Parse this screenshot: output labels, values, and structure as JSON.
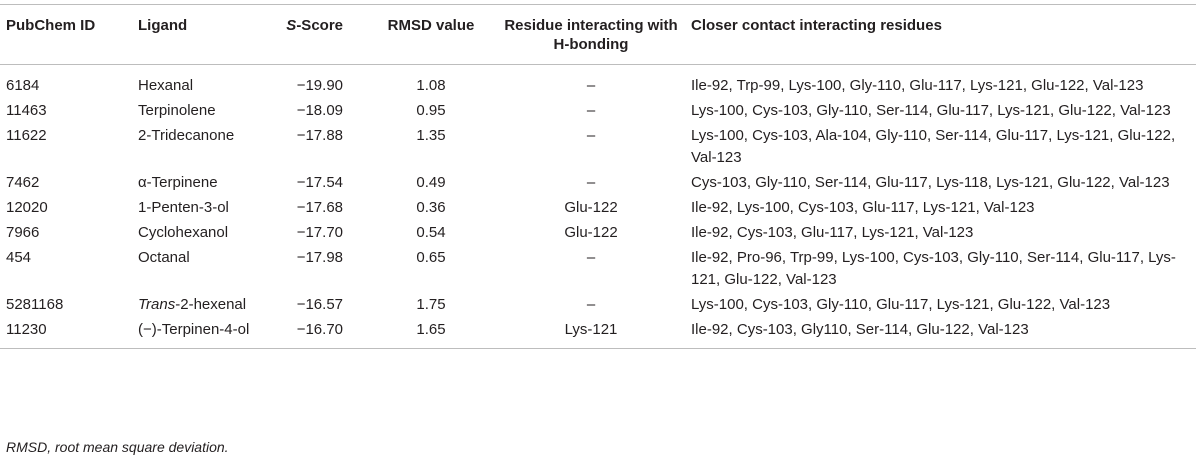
{
  "table": {
    "headers": {
      "pubchem_id": "PubChem ID",
      "ligand": "Ligand",
      "s_score_italic": "S",
      "s_score_rest": "-Score",
      "rmsd": "RMSD value",
      "hbond": "Residue interacting with H-bonding",
      "contacts": "Closer contact interacting residues"
    },
    "rows": [
      {
        "id": "6184",
        "ligand": "Hexanal",
        "ligand_italic": "",
        "score": "−19.90",
        "rmsd": "1.08",
        "hbond": "–",
        "contacts": "Ile-92, Trp-99, Lys-100, Gly-110, Glu-117, Lys-121, Glu-122, Val-123"
      },
      {
        "id": "11463",
        "ligand": "Terpinolene",
        "ligand_italic": "",
        "score": "−18.09",
        "rmsd": "0.95",
        "hbond": "–",
        "contacts": "Lys-100, Cys-103, Gly-110, Ser-114, Glu-117, Lys-121, Glu-122, Val-123"
      },
      {
        "id": "11622",
        "ligand": "2-Tridecanone",
        "ligand_italic": "",
        "score": "−17.88",
        "rmsd": "1.35",
        "hbond": "–",
        "contacts": "Lys-100, Cys-103, Ala-104, Gly-110, Ser-114, Glu-117, Lys-121, Glu-122, Val-123"
      },
      {
        "id": "7462",
        "ligand": "α-Terpinene",
        "ligand_italic": "",
        "score": "−17.54",
        "rmsd": "0.49",
        "hbond": "–",
        "contacts": "Cys-103, Gly-110, Ser-114, Glu-117, Lys-118, Lys-121, Glu-122, Val-123"
      },
      {
        "id": "12020",
        "ligand": "1-Penten-3-ol",
        "ligand_italic": "",
        "score": "−17.68",
        "rmsd": "0.36",
        "hbond": "Glu-122",
        "contacts": "Ile-92, Lys-100, Cys-103, Glu-117, Lys-121, Val-123"
      },
      {
        "id": "7966",
        "ligand": "Cyclohexanol",
        "ligand_italic": "",
        "score": "−17.70",
        "rmsd": "0.54",
        "hbond": "Glu-122",
        "contacts": "Ile-92, Cys-103, Glu-117, Lys-121, Val-123"
      },
      {
        "id": "454",
        "ligand": "Octanal",
        "ligand_italic": "",
        "score": "−17.98",
        "rmsd": "0.65",
        "hbond": "–",
        "contacts": "Ile-92, Pro-96, Trp-99, Lys-100, Cys-103, Gly-110, Ser-114, Glu-117, Lys-121, Glu-122, Val-123"
      },
      {
        "id": "5281168",
        "ligand": "-2-hexenal",
        "ligand_italic": "Trans",
        "score": "−16.57",
        "rmsd": "1.75",
        "hbond": "–",
        "contacts": "Lys-100, Cys-103, Gly-110, Glu-117, Lys-121, Glu-122, Val-123"
      },
      {
        "id": "11230",
        "ligand": "(−)-Terpinen-4-ol",
        "ligand_italic": "",
        "score": "−16.70",
        "rmsd": "1.65",
        "hbond": "Lys-121",
        "contacts": "Ile-92, Cys-103, Gly110, Ser-114, Glu-122, Val-123"
      }
    ]
  },
  "footnote": "RMSD, root mean square deviation."
}
